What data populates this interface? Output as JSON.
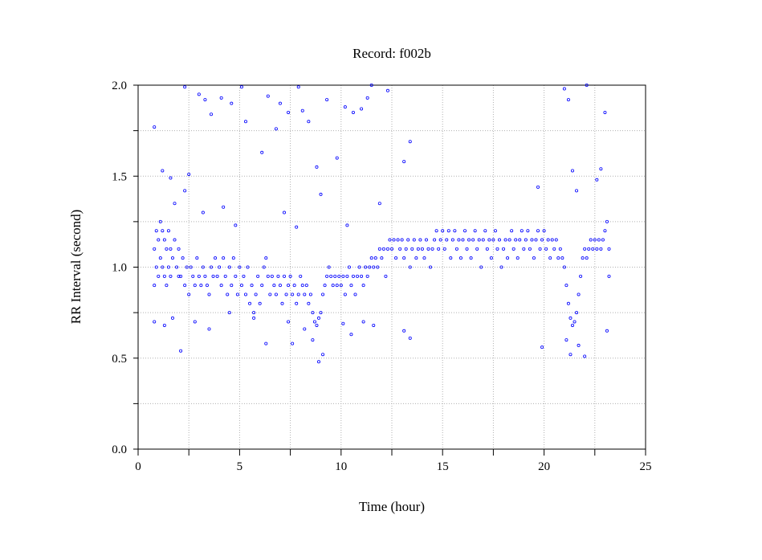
{
  "chart_data": {
    "type": "scatter",
    "title": "Record:  f002b",
    "xlabel": "Time (hour)",
    "ylabel": "RR Interval (second)",
    "xlim": [
      0,
      25
    ],
    "ylim": [
      0,
      2
    ],
    "x_ticks": [
      "0",
      "5",
      "10",
      "15",
      "20",
      "25"
    ],
    "y_ticks": [
      "0.0",
      "0.5",
      "1.0",
      "1.5",
      "2.0"
    ],
    "grid": true,
    "marker_color": "#0000ff",
    "points": [
      [
        0.8,
        1.1
      ],
      [
        0.8,
        0.9
      ],
      [
        0.9,
        1.2
      ],
      [
        0.9,
        1.0
      ],
      [
        1.0,
        1.15
      ],
      [
        1.0,
        0.95
      ],
      [
        1.1,
        1.25
      ],
      [
        1.1,
        1.05
      ],
      [
        1.2,
        1.2
      ],
      [
        1.2,
        1.0
      ],
      [
        1.3,
        1.15
      ],
      [
        1.3,
        0.95
      ],
      [
        1.4,
        1.1
      ],
      [
        1.4,
        0.9
      ],
      [
        1.5,
        1.2
      ],
      [
        1.5,
        1.0
      ],
      [
        1.6,
        1.1
      ],
      [
        1.6,
        0.95
      ],
      [
        1.7,
        1.05
      ],
      [
        1.8,
        1.15
      ],
      [
        1.9,
        1.0
      ],
      [
        2.0,
        1.1
      ],
      [
        2.0,
        0.95
      ],
      [
        2.1,
        0.95
      ],
      [
        2.2,
        1.05
      ],
      [
        2.3,
        0.9
      ],
      [
        2.4,
        1.0
      ],
      [
        2.5,
        0.85
      ],
      [
        2.6,
        1.0
      ],
      [
        2.7,
        0.95
      ],
      [
        2.8,
        0.9
      ],
      [
        2.9,
        1.05
      ],
      [
        3.0,
        0.95
      ],
      [
        3.1,
        0.9
      ],
      [
        3.2,
        1.0
      ],
      [
        3.3,
        0.95
      ],
      [
        3.4,
        0.9
      ],
      [
        3.5,
        0.85
      ],
      [
        3.6,
        1.0
      ],
      [
        3.7,
        0.95
      ],
      [
        3.8,
        1.05
      ],
      [
        3.9,
        0.95
      ],
      [
        4.0,
        1.0
      ],
      [
        4.1,
        0.9
      ],
      [
        4.2,
        1.05
      ],
      [
        4.3,
        0.95
      ],
      [
        4.4,
        0.85
      ],
      [
        4.5,
        1.0
      ],
      [
        4.6,
        0.9
      ],
      [
        4.7,
        1.05
      ],
      [
        4.8,
        0.95
      ],
      [
        4.9,
        0.85
      ],
      [
        5.0,
        1.0
      ],
      [
        5.1,
        0.9
      ],
      [
        5.2,
        0.95
      ],
      [
        5.3,
        0.85
      ],
      [
        5.4,
        1.0
      ],
      [
        5.5,
        0.8
      ],
      [
        5.6,
        0.9
      ],
      [
        5.7,
        0.75
      ],
      [
        5.8,
        0.85
      ],
      [
        5.9,
        0.95
      ],
      [
        6.0,
        0.8
      ],
      [
        6.1,
        0.9
      ],
      [
        6.2,
        1.0
      ],
      [
        6.3,
        1.05
      ],
      [
        6.4,
        0.95
      ],
      [
        6.5,
        0.85
      ],
      [
        6.6,
        0.95
      ],
      [
        6.7,
        0.9
      ],
      [
        6.8,
        0.85
      ],
      [
        6.9,
        0.95
      ],
      [
        7.0,
        0.9
      ],
      [
        7.1,
        0.8
      ],
      [
        7.2,
        0.95
      ],
      [
        7.3,
        0.85
      ],
      [
        7.4,
        0.9
      ],
      [
        7.5,
        0.95
      ],
      [
        7.6,
        0.85
      ],
      [
        7.7,
        0.9
      ],
      [
        7.8,
        0.8
      ],
      [
        7.9,
        0.85
      ],
      [
        8.0,
        0.95
      ],
      [
        8.1,
        0.9
      ],
      [
        8.2,
        0.85
      ],
      [
        8.3,
        0.9
      ],
      [
        8.4,
        0.8
      ],
      [
        8.5,
        0.85
      ],
      [
        8.6,
        0.75
      ],
      [
        8.7,
        0.7
      ],
      [
        8.8,
        0.68
      ],
      [
        8.9,
        0.72
      ],
      [
        9.0,
        0.75
      ],
      [
        9.1,
        0.85
      ],
      [
        9.2,
        0.9
      ],
      [
        9.3,
        0.95
      ],
      [
        9.4,
        1.0
      ],
      [
        9.5,
        0.95
      ],
      [
        9.6,
        0.9
      ],
      [
        9.7,
        0.95
      ],
      [
        9.8,
        0.9
      ],
      [
        9.9,
        0.95
      ],
      [
        10.0,
        0.9
      ],
      [
        10.1,
        0.95
      ],
      [
        10.2,
        0.85
      ],
      [
        10.3,
        0.95
      ],
      [
        10.4,
        1.0
      ],
      [
        10.5,
        0.9
      ],
      [
        10.6,
        0.95
      ],
      [
        10.7,
        0.85
      ],
      [
        10.8,
        0.95
      ],
      [
        10.9,
        1.0
      ],
      [
        11.0,
        0.95
      ],
      [
        11.1,
        0.9
      ],
      [
        11.2,
        1.0
      ],
      [
        11.3,
        0.95
      ],
      [
        11.4,
        1.0
      ],
      [
        11.5,
        1.05
      ],
      [
        11.6,
        1.0
      ],
      [
        11.7,
        1.05
      ],
      [
        11.8,
        1.0
      ],
      [
        11.9,
        1.1
      ],
      [
        12.0,
        1.05
      ],
      [
        12.1,
        1.1
      ],
      [
        12.2,
        0.95
      ],
      [
        12.3,
        1.1
      ],
      [
        12.4,
        1.15
      ],
      [
        12.5,
        1.1
      ],
      [
        12.6,
        1.15
      ],
      [
        12.7,
        1.05
      ],
      [
        12.8,
        1.15
      ],
      [
        12.9,
        1.1
      ],
      [
        13.0,
        1.15
      ],
      [
        13.1,
        1.05
      ],
      [
        13.2,
        1.1
      ],
      [
        13.3,
        1.15
      ],
      [
        13.4,
        1.0
      ],
      [
        13.5,
        1.1
      ],
      [
        13.6,
        1.15
      ],
      [
        13.7,
        1.05
      ],
      [
        13.8,
        1.1
      ],
      [
        13.9,
        1.15
      ],
      [
        14.0,
        1.1
      ],
      [
        14.1,
        1.05
      ],
      [
        14.2,
        1.15
      ],
      [
        14.3,
        1.1
      ],
      [
        14.4,
        1.0
      ],
      [
        14.5,
        1.1
      ],
      [
        14.6,
        1.15
      ],
      [
        14.7,
        1.2
      ],
      [
        14.8,
        1.1
      ],
      [
        14.9,
        1.15
      ],
      [
        15.0,
        1.2
      ],
      [
        15.1,
        1.1
      ],
      [
        15.2,
        1.15
      ],
      [
        15.3,
        1.2
      ],
      [
        15.4,
        1.05
      ],
      [
        15.5,
        1.15
      ],
      [
        15.6,
        1.2
      ],
      [
        15.7,
        1.1
      ],
      [
        15.8,
        1.15
      ],
      [
        15.9,
        1.05
      ],
      [
        16.0,
        1.15
      ],
      [
        16.1,
        1.2
      ],
      [
        16.2,
        1.1
      ],
      [
        16.3,
        1.15
      ],
      [
        16.4,
        1.05
      ],
      [
        16.5,
        1.15
      ],
      [
        16.6,
        1.2
      ],
      [
        16.7,
        1.1
      ],
      [
        16.8,
        1.15
      ],
      [
        16.9,
        1.0
      ],
      [
        17.0,
        1.15
      ],
      [
        17.1,
        1.2
      ],
      [
        17.2,
        1.1
      ],
      [
        17.3,
        1.15
      ],
      [
        17.4,
        1.05
      ],
      [
        17.5,
        1.15
      ],
      [
        17.6,
        1.2
      ],
      [
        17.7,
        1.1
      ],
      [
        17.8,
        1.15
      ],
      [
        17.9,
        1.0
      ],
      [
        18.0,
        1.1
      ],
      [
        18.1,
        1.15
      ],
      [
        18.2,
        1.05
      ],
      [
        18.3,
        1.15
      ],
      [
        18.4,
        1.2
      ],
      [
        18.5,
        1.1
      ],
      [
        18.6,
        1.15
      ],
      [
        18.7,
        1.05
      ],
      [
        18.8,
        1.15
      ],
      [
        18.9,
        1.2
      ],
      [
        19.0,
        1.1
      ],
      [
        19.1,
        1.15
      ],
      [
        19.2,
        1.2
      ],
      [
        19.3,
        1.1
      ],
      [
        19.4,
        1.15
      ],
      [
        19.5,
        1.05
      ],
      [
        19.6,
        1.15
      ],
      [
        19.7,
        1.2
      ],
      [
        19.8,
        1.1
      ],
      [
        19.9,
        1.15
      ],
      [
        20.0,
        1.2
      ],
      [
        20.1,
        1.1
      ],
      [
        20.2,
        1.15
      ],
      [
        20.3,
        1.05
      ],
      [
        20.4,
        1.15
      ],
      [
        20.5,
        1.1
      ],
      [
        20.6,
        1.15
      ],
      [
        20.7,
        1.05
      ],
      [
        20.8,
        1.1
      ],
      [
        20.9,
        1.05
      ],
      [
        21.0,
        1.0
      ],
      [
        21.1,
        0.9
      ],
      [
        21.2,
        0.8
      ],
      [
        21.3,
        0.72
      ],
      [
        21.4,
        0.68
      ],
      [
        21.5,
        0.7
      ],
      [
        21.6,
        0.75
      ],
      [
        21.7,
        0.85
      ],
      [
        21.8,
        0.95
      ],
      [
        21.9,
        1.05
      ],
      [
        22.0,
        1.1
      ],
      [
        22.1,
        1.05
      ],
      [
        22.2,
        1.1
      ],
      [
        22.3,
        1.15
      ],
      [
        22.4,
        1.1
      ],
      [
        22.5,
        1.15
      ],
      [
        22.6,
        1.1
      ],
      [
        22.7,
        1.15
      ],
      [
        22.8,
        1.1
      ],
      [
        22.9,
        1.15
      ],
      [
        23.0,
        1.2
      ],
      [
        23.1,
        1.25
      ],
      [
        23.2,
        1.1
      ],
      [
        23.2,
        0.95
      ],
      [
        0.8,
        1.77
      ],
      [
        1.2,
        1.53
      ],
      [
        1.6,
        1.49
      ],
      [
        2.3,
        1.99
      ],
      [
        2.5,
        1.51
      ],
      [
        3.0,
        1.95
      ],
      [
        3.3,
        1.92
      ],
      [
        3.6,
        1.84
      ],
      [
        4.1,
        1.93
      ],
      [
        4.6,
        1.9
      ],
      [
        5.1,
        1.99
      ],
      [
        5.3,
        1.8
      ],
      [
        6.1,
        1.63
      ],
      [
        6.4,
        1.94
      ],
      [
        6.8,
        1.76
      ],
      [
        7.0,
        1.9
      ],
      [
        7.4,
        1.85
      ],
      [
        7.9,
        1.99
      ],
      [
        8.1,
        1.86
      ],
      [
        8.4,
        1.8
      ],
      [
        8.8,
        1.55
      ],
      [
        9.3,
        1.92
      ],
      [
        9.8,
        1.6
      ],
      [
        10.2,
        1.88
      ],
      [
        10.6,
        1.85
      ],
      [
        11.0,
        1.87
      ],
      [
        11.3,
        1.93
      ],
      [
        11.5,
        2.0
      ],
      [
        12.3,
        1.97
      ],
      [
        13.1,
        1.58
      ],
      [
        13.4,
        1.69
      ],
      [
        19.7,
        1.44
      ],
      [
        21.0,
        1.98
      ],
      [
        21.2,
        1.92
      ],
      [
        21.4,
        1.53
      ],
      [
        21.6,
        1.42
      ],
      [
        22.1,
        2.0
      ],
      [
        22.6,
        1.48
      ],
      [
        22.8,
        1.54
      ],
      [
        23.0,
        1.85
      ],
      [
        1.8,
        1.35
      ],
      [
        2.3,
        1.42
      ],
      [
        3.2,
        1.3
      ],
      [
        4.2,
        1.33
      ],
      [
        4.8,
        1.23
      ],
      [
        7.2,
        1.3
      ],
      [
        7.8,
        1.22
      ],
      [
        9.0,
        1.4
      ],
      [
        10.3,
        1.23
      ],
      [
        11.9,
        1.35
      ],
      [
        0.8,
        0.7
      ],
      [
        1.3,
        0.68
      ],
      [
        1.7,
        0.72
      ],
      [
        2.1,
        0.54
      ],
      [
        2.8,
        0.7
      ],
      [
        3.5,
        0.66
      ],
      [
        4.5,
        0.75
      ],
      [
        5.7,
        0.72
      ],
      [
        6.3,
        0.58
      ],
      [
        7.4,
        0.7
      ],
      [
        7.6,
        0.58
      ],
      [
        8.2,
        0.66
      ],
      [
        8.6,
        0.6
      ],
      [
        8.9,
        0.48
      ],
      [
        9.1,
        0.52
      ],
      [
        10.1,
        0.69
      ],
      [
        10.5,
        0.63
      ],
      [
        11.1,
        0.7
      ],
      [
        11.6,
        0.68
      ],
      [
        13.1,
        0.65
      ],
      [
        13.4,
        0.61
      ],
      [
        19.9,
        0.56
      ],
      [
        21.1,
        0.6
      ],
      [
        21.3,
        0.52
      ],
      [
        21.7,
        0.57
      ],
      [
        22.0,
        0.51
      ],
      [
        23.1,
        0.65
      ]
    ]
  }
}
